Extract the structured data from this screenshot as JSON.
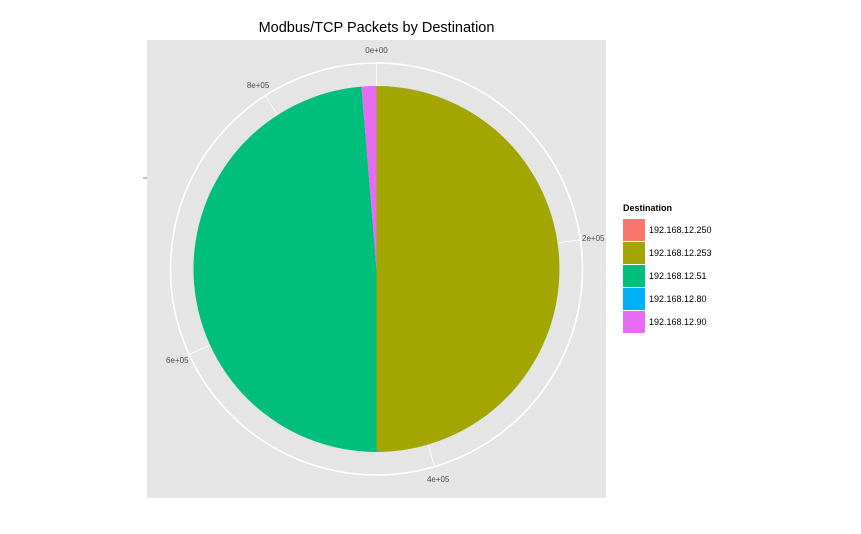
{
  "chart_data": {
    "type": "pie",
    "title": "Modbus/TCP Packets by Destination",
    "legend_title": "Destination",
    "legend_position": "right",
    "background": "#e5e5e5",
    "grid": true,
    "total": 880000,
    "theta_ticks": [
      {
        "value": 0,
        "label": "0e+00"
      },
      {
        "value": 200000,
        "label": "2e+05"
      },
      {
        "value": 400000,
        "label": "4e+05"
      },
      {
        "value": 600000,
        "label": "6e+05"
      },
      {
        "value": 800000,
        "label": "8e+05"
      }
    ],
    "slices": [
      {
        "name": "192.168.12.250",
        "value": 0,
        "color": "#F8766D"
      },
      {
        "name": "192.168.12.253",
        "value": 440000,
        "color": "#A3A500"
      },
      {
        "name": "192.168.12.51",
        "value": 428500,
        "color": "#00BF7D"
      },
      {
        "name": "192.168.12.80",
        "value": 0,
        "color": "#00B0F6"
      },
      {
        "name": "192.168.12.90",
        "value": 11500,
        "color": "#E76BF3"
      }
    ]
  }
}
